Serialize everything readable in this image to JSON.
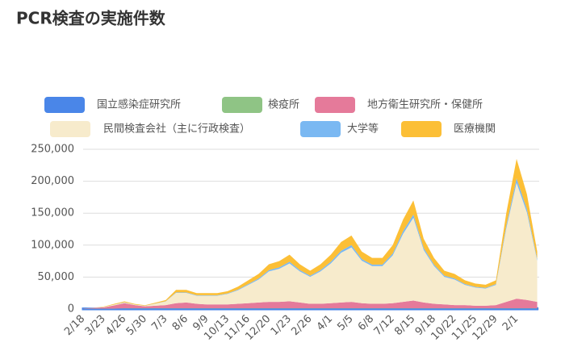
{
  "chart_data": {
    "type": "stacked_area",
    "title": "PCR検査の実施件数",
    "categories": [
      "2/18",
      null,
      "3/23",
      null,
      "4/26",
      null,
      "5/30",
      null,
      "7/3",
      null,
      "8/6",
      null,
      "9/9",
      null,
      "10/13",
      null,
      "11/16",
      null,
      "12/20",
      null,
      "1/23",
      null,
      "2/26",
      null,
      "4/1",
      null,
      "5/5",
      null,
      "6/8",
      null,
      "7/12",
      null,
      "8/15",
      null,
      "9/18",
      null,
      "10/22",
      null,
      "11/25",
      null,
      "12/29",
      null,
      "2/1",
      null,
      null
    ],
    "series": [
      {
        "name": "国立感染症研究所",
        "color": "#4a86e8",
        "values": [
          500,
          500,
          500,
          500,
          1000,
          1000,
          1000,
          1000,
          1000,
          1000,
          1000,
          1000,
          1000,
          1000,
          1000,
          1000,
          1000,
          1000,
          1000,
          1000,
          1000,
          1000,
          1000,
          1000,
          1000,
          1000,
          1000,
          1000,
          1000,
          1000,
          1000,
          1000,
          1000,
          1000,
          1000,
          1000,
          1000,
          1000,
          1000,
          1000,
          1000,
          1000,
          1000,
          1000,
          1000
        ]
      },
      {
        "name": "検疫所",
        "color": "#8fc485",
        "values": [
          200,
          200,
          200,
          200,
          200,
          200,
          200,
          200,
          200,
          200,
          200,
          200,
          200,
          200,
          200,
          200,
          200,
          200,
          200,
          200,
          200,
          200,
          200,
          200,
          200,
          200,
          200,
          200,
          200,
          200,
          200,
          200,
          200,
          200,
          200,
          200,
          200,
          200,
          200,
          200,
          200,
          200,
          200,
          200,
          200
        ]
      },
      {
        "name": "地方衛生研究所・保健所",
        "color": "#e57a9a",
        "values": [
          200,
          1000,
          2000,
          5000,
          8000,
          5000,
          3000,
          4000,
          5000,
          8000,
          9000,
          7000,
          6000,
          6000,
          6000,
          7000,
          8000,
          9000,
          10000,
          10000,
          11000,
          9000,
          7000,
          7000,
          8000,
          9000,
          10000,
          8000,
          7000,
          7000,
          8000,
          10000,
          12000,
          9000,
          7000,
          6000,
          5000,
          5000,
          4000,
          4000,
          5000,
          10000,
          15000,
          13000,
          10000
        ]
      },
      {
        "name": "民間検査会社（主に行政検査）",
        "color": "#f7ebcc",
        "values": [
          100,
          300,
          700,
          1100,
          900,
          600,
          800,
          3200,
          5600,
          16000,
          15000,
          12700,
          13700,
          13700,
          16400,
          21100,
          28500,
          35900,
          47600,
          51700,
          59200,
          48600,
          42200,
          50600,
          62200,
          77900,
          85300,
          66400,
          59000,
          59000,
          74800,
          106400,
          129600,
          82200,
          59000,
          43200,
          39900,
          31500,
          28400,
          26800,
          31500,
          114800,
          181200,
          137000,
          64400
        ]
      },
      {
        "name": "大学等",
        "color": "#7ab8f2",
        "values": [
          0,
          0,
          100,
          200,
          400,
          200,
          200,
          300,
          400,
          900,
          900,
          800,
          800,
          800,
          800,
          1100,
          1400,
          1700,
          2100,
          2300,
          2600,
          2100,
          1800,
          2100,
          2600,
          3200,
          3500,
          2700,
          2400,
          2400,
          3000,
          4200,
          5100,
          3300,
          2400,
          1800,
          1700,
          1400,
          1200,
          1100,
          1400,
          4500,
          7000,
          5400,
          2700
        ]
      },
      {
        "name": "医療機関",
        "color": "#fcbf36",
        "values": [
          0,
          0,
          500,
          1000,
          1500,
          1000,
          800,
          1300,
          1800,
          3900,
          3900,
          3300,
          3300,
          3300,
          3600,
          4600,
          5900,
          7200,
          9100,
          9800,
          11000,
          9100,
          7800,
          9100,
          11000,
          13700,
          15000,
          11700,
          10400,
          10400,
          13000,
          18200,
          22100,
          14300,
          10400,
          7800,
          7200,
          5900,
          5200,
          4900,
          5900,
          19500,
          30600,
          23400,
          11700
        ]
      }
    ],
    "ylim": [
      0,
      250000
    ],
    "yticks": [
      0,
      {
        "value": 50000,
        "label": "50,000"
      },
      {
        "value": 100000,
        "label": "100,000"
      },
      {
        "value": 150000,
        "label": "150,000"
      },
      {
        "value": 200000,
        "label": "200,000"
      },
      {
        "value": 250000,
        "label": "250,000"
      }
    ],
    "grid": true,
    "legend": "top"
  }
}
